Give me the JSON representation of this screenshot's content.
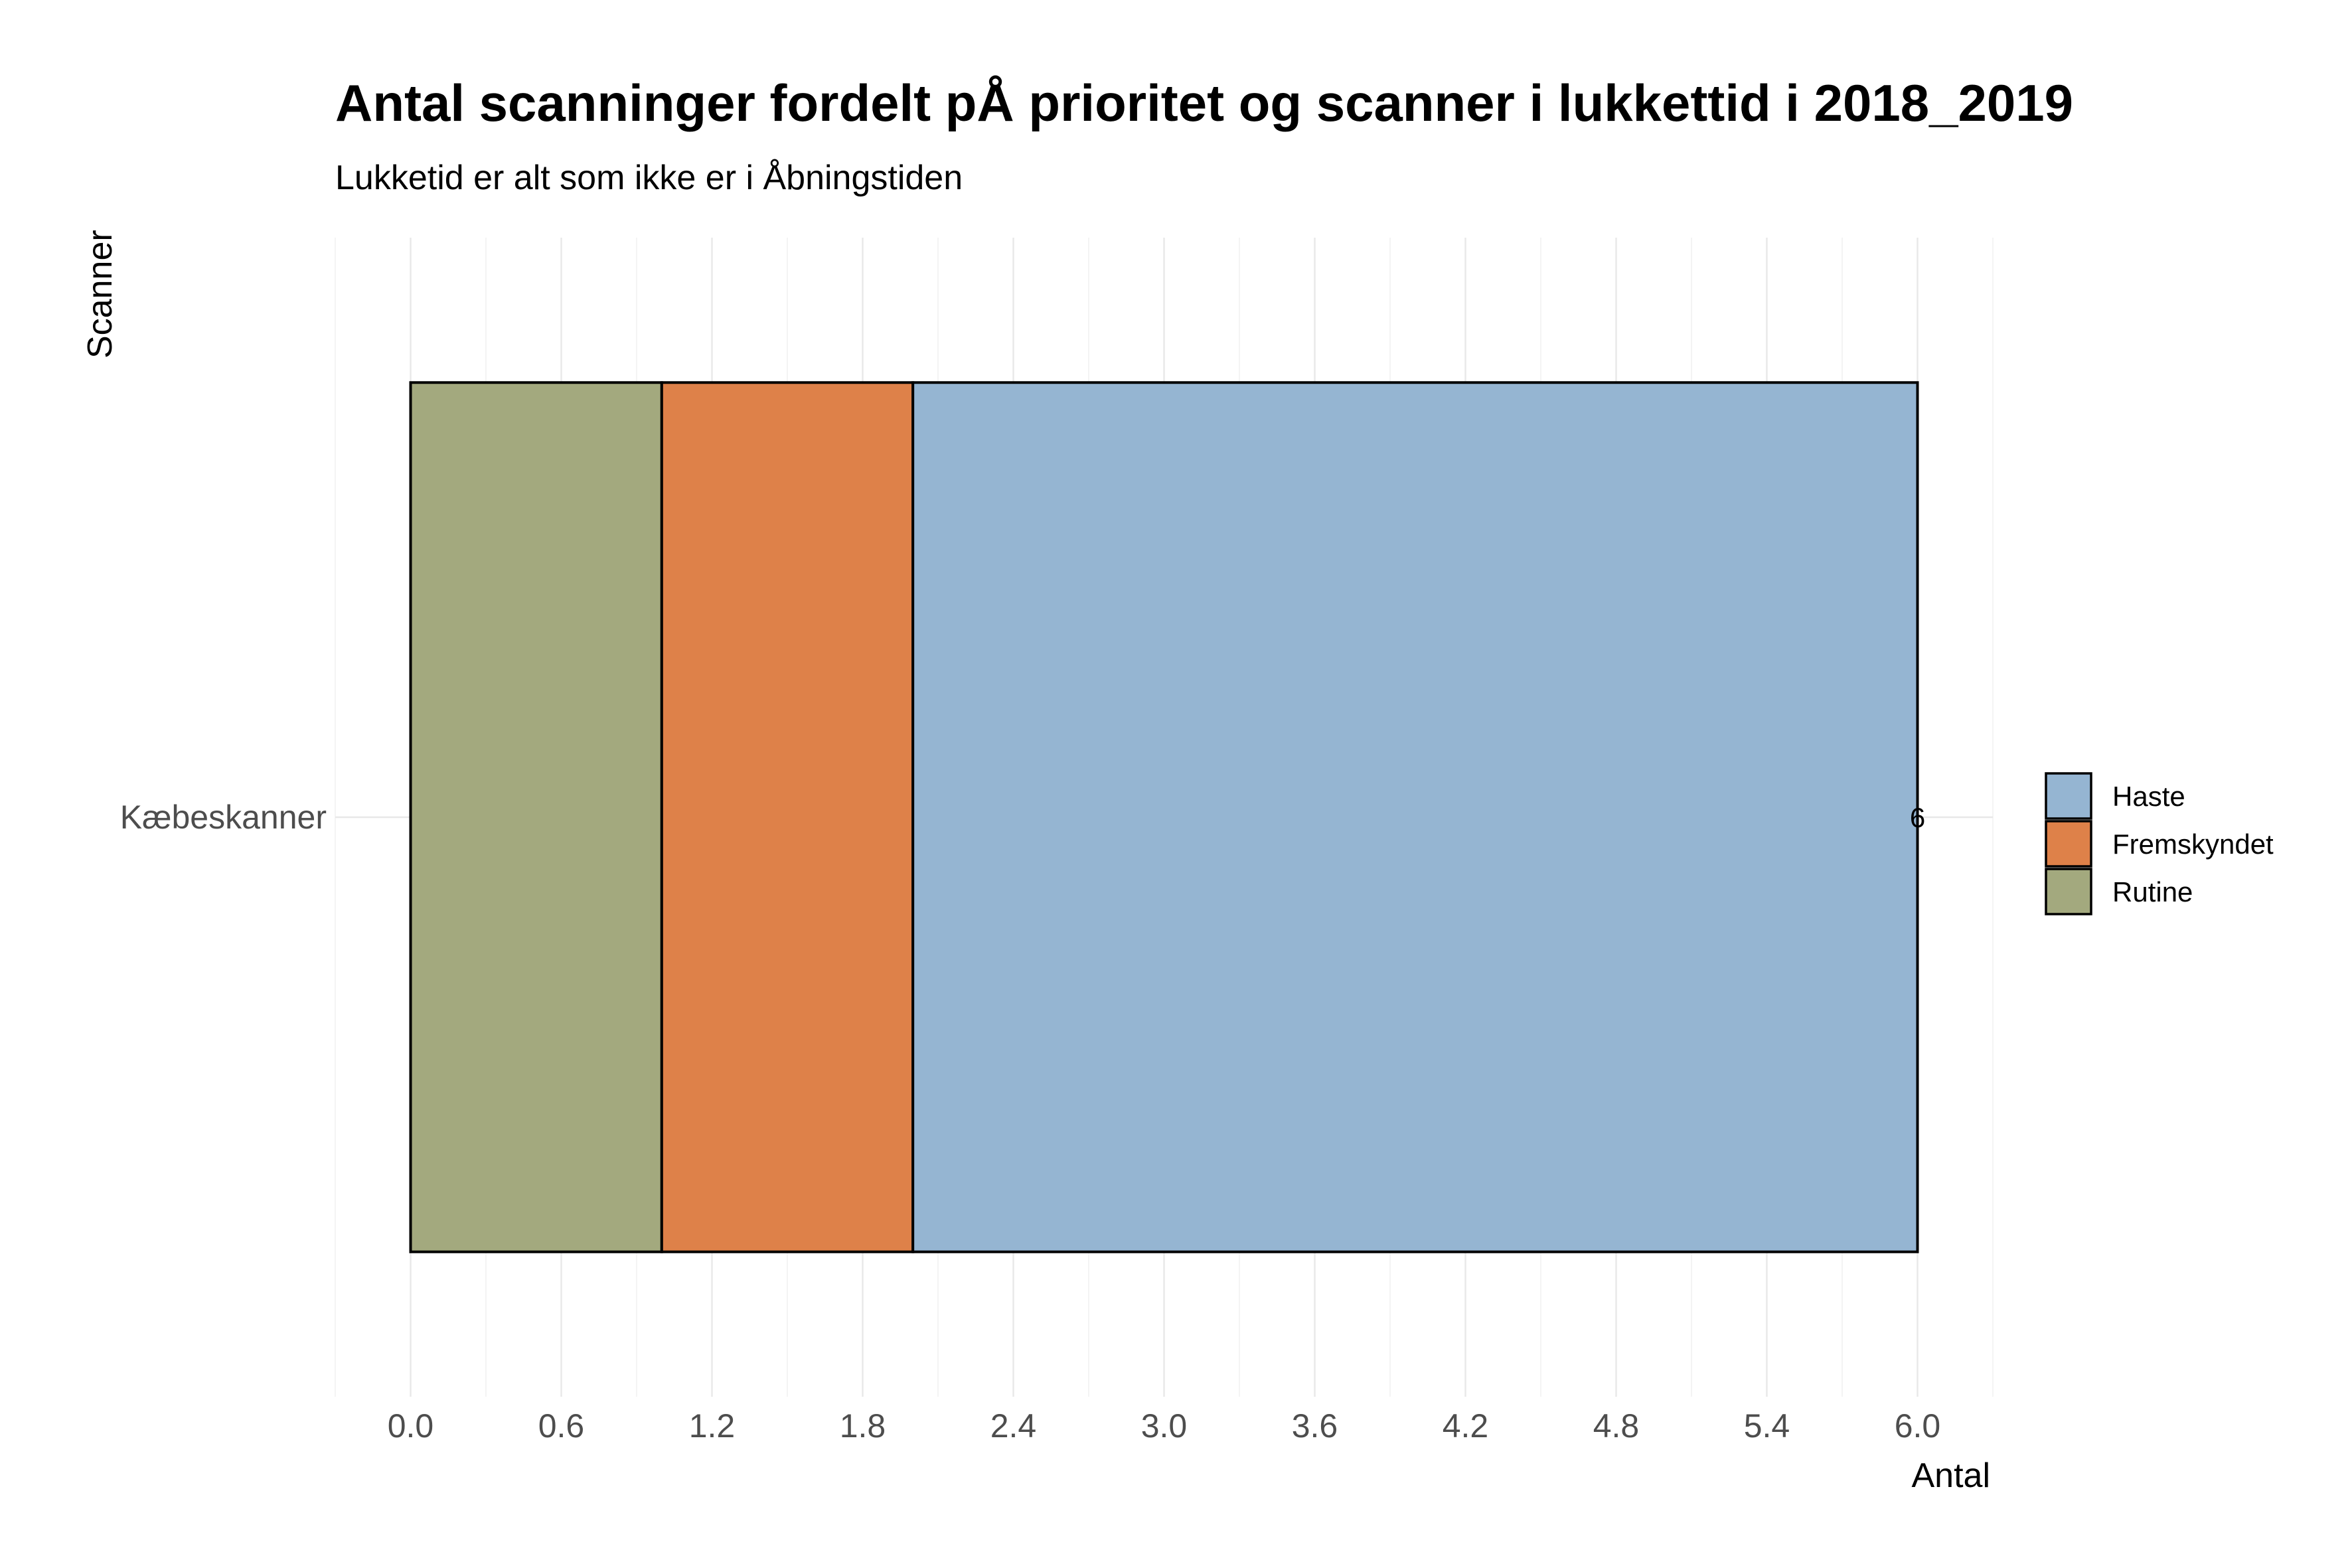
{
  "chart_data": {
    "type": "bar",
    "orientation": "horizontal",
    "stacked": true,
    "title": "Antal scanninger fordelt pÅ prioritet og scanner i lukkettid i 2018_2019",
    "subtitle": "Lukketid er alt som ikke er i Åbningstiden",
    "xlabel": "Antal",
    "ylabel": "Scanner",
    "categories": [
      "Kæbeskanner"
    ],
    "series": [
      {
        "name": "Rutine",
        "values": [
          1
        ],
        "color": "#a3a97e"
      },
      {
        "name": "Fremskyndet",
        "values": [
          1
        ],
        "color": "#de8149"
      },
      {
        "name": "Haste",
        "values": [
          4
        ],
        "color": "#95b5d2"
      }
    ],
    "total_labels": [
      "6"
    ],
    "xlim": [
      -0.3,
      6.3
    ],
    "x_ticks": [
      "0.0",
      "0.6",
      "1.2",
      "1.8",
      "2.4",
      "3.0",
      "3.6",
      "4.2",
      "4.8",
      "5.4",
      "6.0"
    ],
    "legend": {
      "position": "right",
      "order": [
        "Haste",
        "Fremskyndet",
        "Rutine"
      ]
    },
    "grid": true
  }
}
